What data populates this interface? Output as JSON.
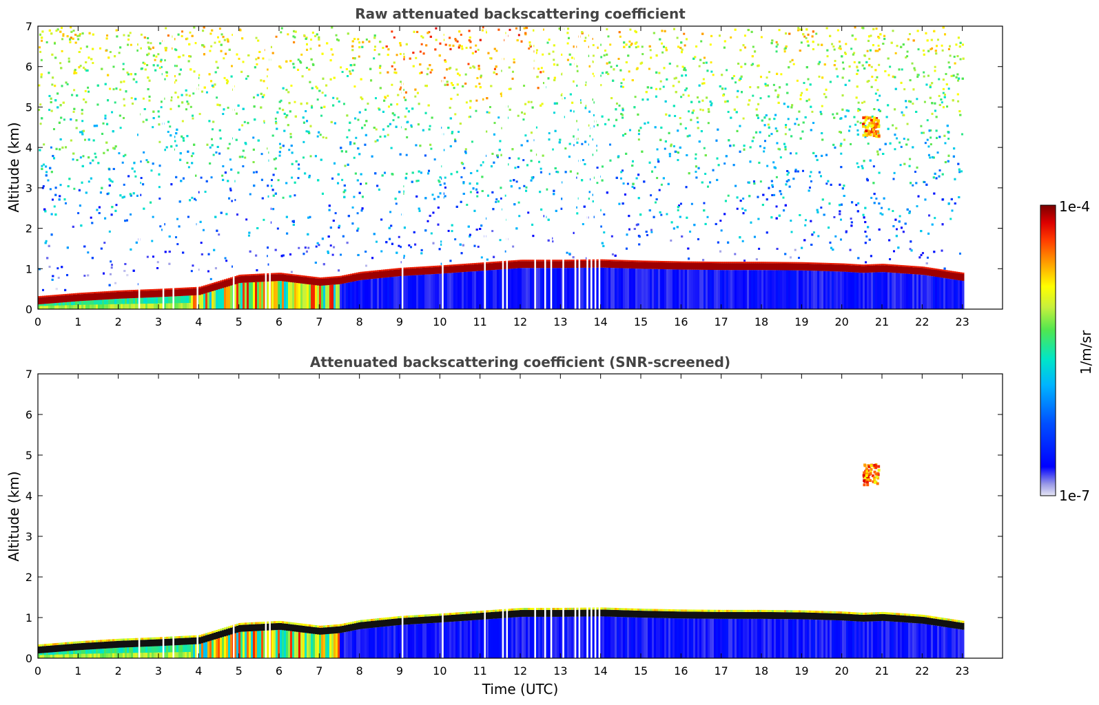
{
  "chart_data": [
    {
      "type": "heatmap",
      "title": "Raw attenuated backscattering coefficient",
      "xlabel": "",
      "ylabel": "Altitude (km)",
      "xlim": [
        0,
        24
      ],
      "ylim": [
        0,
        7
      ],
      "x_ticks": [
        0,
        1,
        2,
        3,
        4,
        5,
        6,
        7,
        8,
        9,
        10,
        11,
        12,
        13,
        14,
        15,
        16,
        17,
        18,
        19,
        20,
        21,
        22,
        23
      ],
      "y_ticks": [
        0,
        1,
        2,
        3,
        4,
        5,
        6,
        7
      ],
      "data_extent_x": [
        0,
        23
      ],
      "boundary_layer_top_km": {
        "x": [
          0,
          1,
          2,
          3,
          4,
          5,
          6,
          7,
          7.5,
          8,
          9,
          10,
          11,
          12,
          13,
          14,
          15,
          16,
          17,
          18,
          19,
          20,
          20.5,
          21,
          22,
          23
        ],
        "y": [
          0.22,
          0.3,
          0.36,
          0.4,
          0.45,
          0.75,
          0.8,
          0.68,
          0.72,
          0.82,
          0.92,
          0.98,
          1.05,
          1.12,
          1.12,
          1.13,
          1.1,
          1.08,
          1.07,
          1.07,
          1.06,
          1.03,
          1.0,
          1.02,
          0.95,
          0.8
        ]
      },
      "elevated_layer": {
        "x": [
          20.5,
          20.9
        ],
        "y": [
          4.3,
          4.8
        ]
      },
      "data_gaps_x": [
        2.5,
        3.1,
        3.35,
        3.95,
        4.85,
        5.65,
        5.75,
        9.05,
        10.05,
        11.1,
        11.55,
        11.65,
        12.35,
        12.6,
        12.75,
        13.05,
        13.35,
        13.45,
        13.65,
        13.75,
        13.85,
        13.95
      ]
    },
    {
      "type": "heatmap",
      "title": "Attenuated backscattering coefficient (SNR-screened)",
      "xlabel": "Time (UTC)",
      "ylabel": "Altitude (km)",
      "xlim": [
        0,
        24
      ],
      "ylim": [
        0,
        7
      ],
      "x_ticks": [
        0,
        1,
        2,
        3,
        4,
        5,
        6,
        7,
        8,
        9,
        10,
        11,
        12,
        13,
        14,
        15,
        16,
        17,
        18,
        19,
        20,
        21,
        22,
        23
      ],
      "y_ticks": [
        0,
        1,
        2,
        3,
        4,
        5,
        6,
        7
      ],
      "data_extent_x": [
        0,
        23
      ]
    }
  ],
  "colorbar": {
    "label": "1/m/sr",
    "max_label": "1e-4",
    "min_label": "1e-7",
    "range": [
      1e-07,
      0.0001
    ],
    "colormap_stops": [
      "#e6e6f5",
      "#9999e6",
      "#0000ff",
      "#0050ff",
      "#00b4ff",
      "#00e6c8",
      "#50e650",
      "#c8f03c",
      "#ffff00",
      "#ffa000",
      "#ff3c00",
      "#dc0000",
      "#7a0000"
    ]
  }
}
